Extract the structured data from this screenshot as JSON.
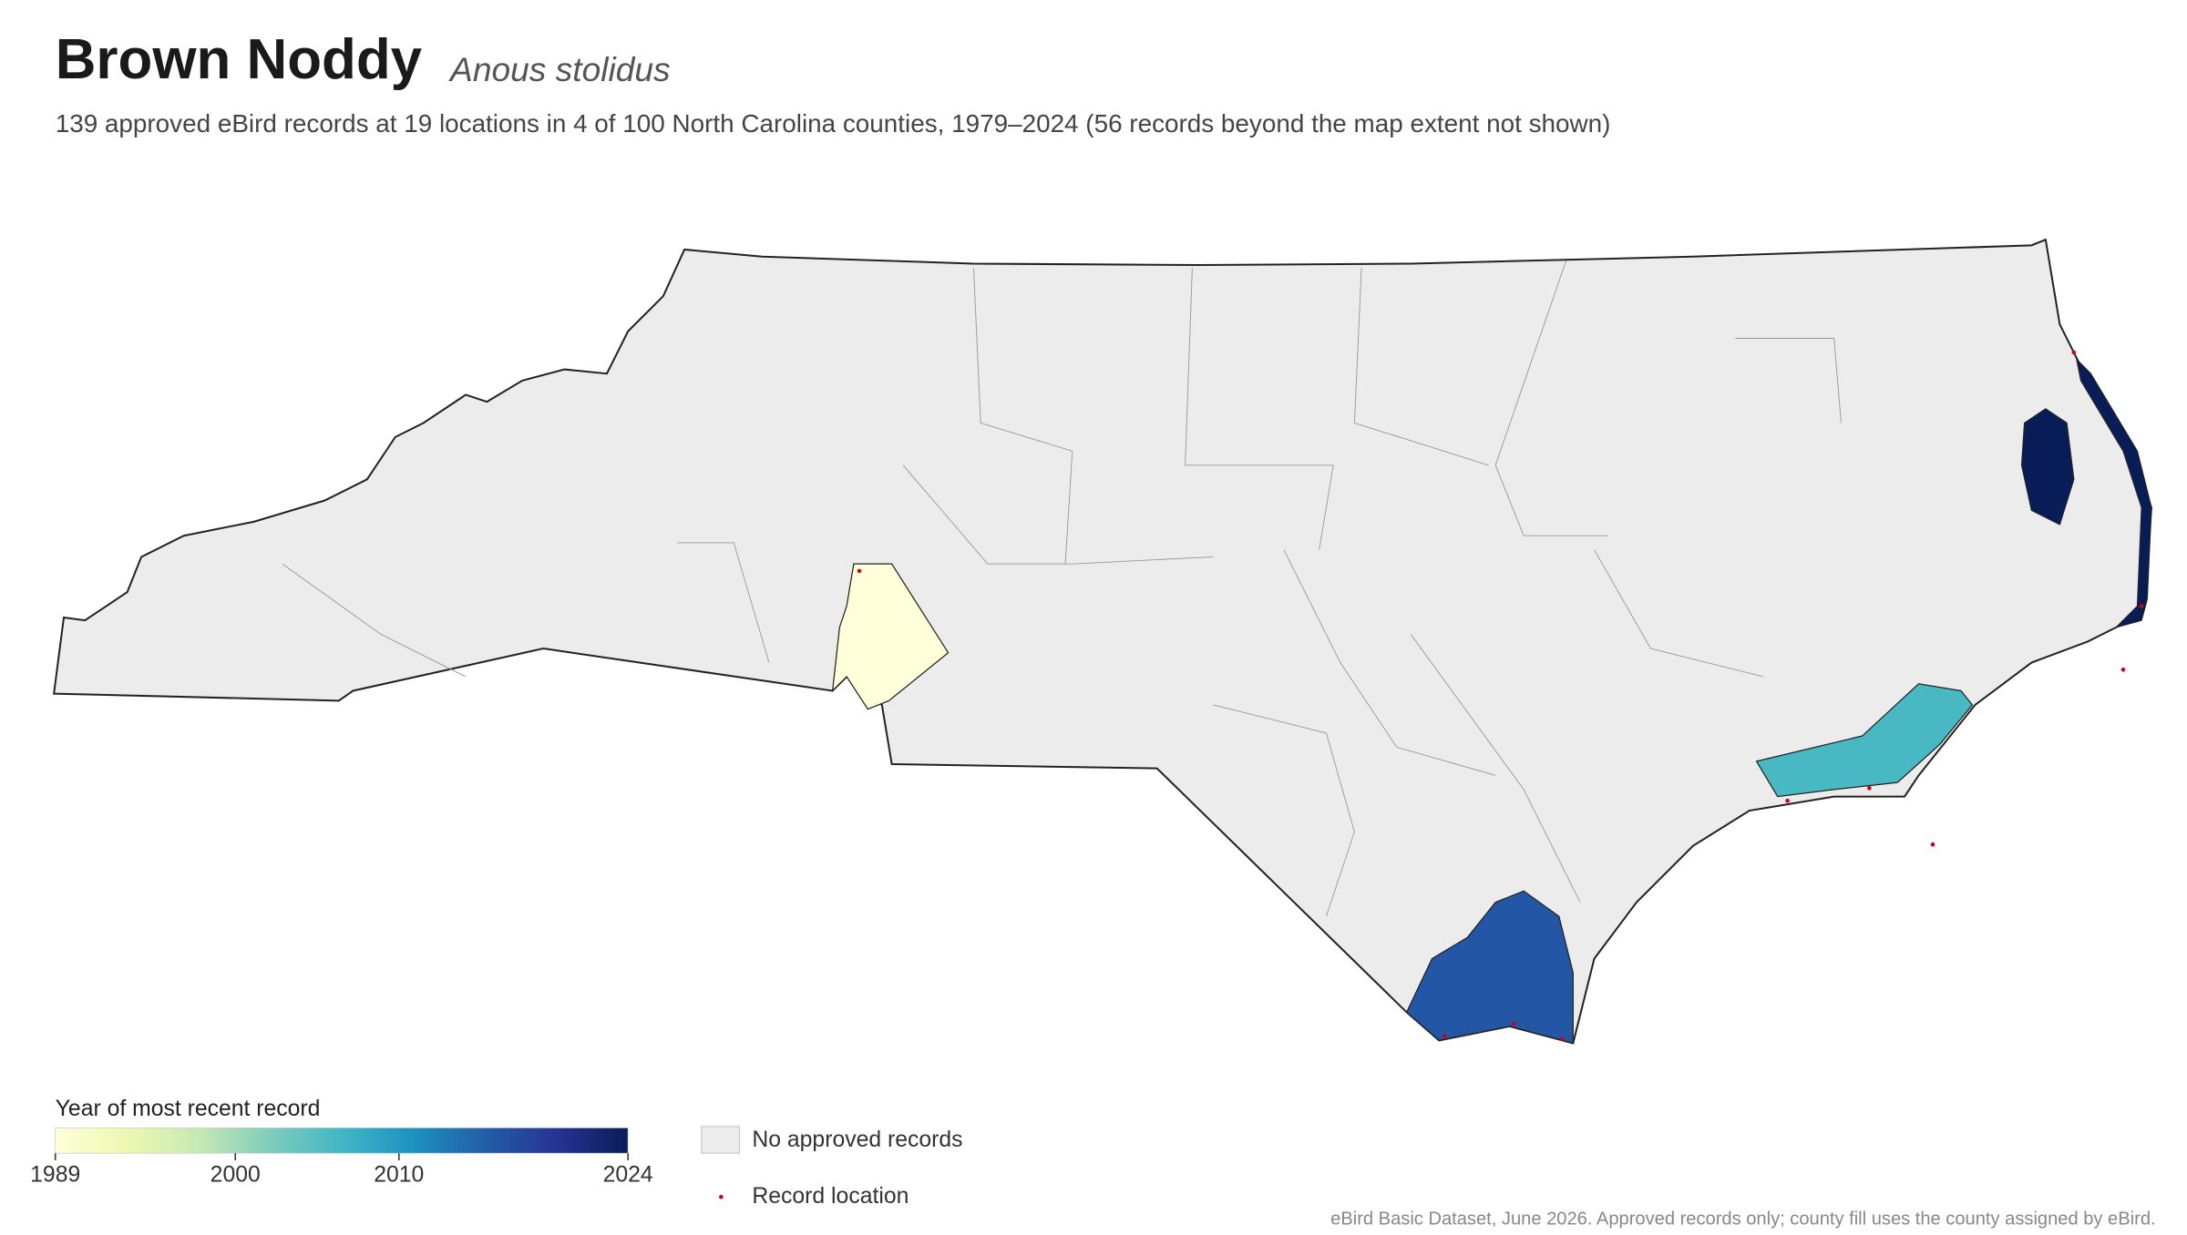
{
  "chart_data": {
    "type": "choropleth",
    "title": "Brown Noddy",
    "scientific_name": "Anous stolidus",
    "subtitle": "139 approved eBird records at 19 locations in 4 of 100 North Carolina counties, 1979–2024 (56 records beyond the map extent not shown)",
    "colorbar_title": "Year of most recent record",
    "colorbar_lim": [
      1989,
      2024
    ],
    "colorbar_ticks": [
      1989,
      2000,
      2010,
      2024
    ],
    "colormap": [
      "#ffffd9",
      "#edf8b1",
      "#c7e9b4",
      "#7fcdbb",
      "#41b6c4",
      "#1d91c0",
      "#225ea8",
      "#253494",
      "#081d58"
    ],
    "counties": [
      {
        "year": 1989
      },
      {
        "year": 2006
      },
      {
        "year": 2016
      },
      {
        "year": 2024
      }
    ],
    "no_data_color": "#ececec",
    "legend": [
      "No approved records",
      "Record location"
    ],
    "source": "eBird Basic Dataset, June 2026. Approved records only; county fill uses the county assigned by eBird."
  }
}
